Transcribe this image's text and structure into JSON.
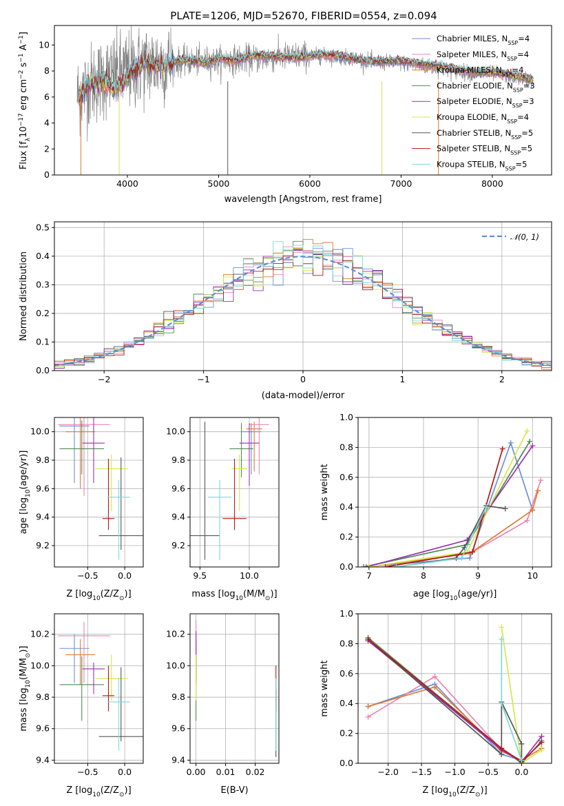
{
  "figure": {
    "title": "PLATE=1206, MJD=52670, FIBERID=0554, z=0.094"
  },
  "series_styles": [
    {
      "name": "Chabrier MILES",
      "color": "#6a8fd8",
      "nssp": "4"
    },
    {
      "name": "Salpeter MILES",
      "color": "#e884b4",
      "nssp": "4"
    },
    {
      "name": "Kroupa MILES",
      "color": "#e07a35",
      "nssp": "4"
    },
    {
      "name": "Chabrier ELODIE",
      "color": "#4f8a4f",
      "nssp": "3"
    },
    {
      "name": "Salpeter ELODIE",
      "color": "#9a2fb0",
      "nssp": "3"
    },
    {
      "name": "Kroupa ELODIE",
      "color": "#d4e84a",
      "nssp": "4"
    },
    {
      "name": "Chabrier STELIB",
      "color": "#555555",
      "nssp": "5"
    },
    {
      "name": "Salpeter STELIB",
      "color": "#b01818",
      "nssp": "5"
    },
    {
      "name": "Kroupa STELIB",
      "color": "#7fd6dc",
      "nssp": "5"
    }
  ],
  "chart_data": [
    {
      "id": "spectrum",
      "type": "line",
      "title": "PLATE=1206, MJD=52670, FIBERID=0554, z=0.094",
      "xlabel": "wavelength [Angstrom, rest frame]",
      "ylabel_parts": [
        "Flux [f",
        "λ",
        "10",
        "−17",
        " erg cm",
        "−2",
        " s",
        "−1",
        " A",
        "−1",
        "]"
      ],
      "xlim": [
        3200,
        8650
      ],
      "ylim": [
        0,
        11.5
      ],
      "xticks": [
        4000,
        5000,
        6000,
        7000,
        8000
      ],
      "yticks": [
        0,
        2,
        4,
        6,
        8,
        10
      ],
      "legend_position": "upper right",
      "legend": [
        {
          "label": "Chabrier MILES, N",
          "sub": "SSP",
          "value": "=4"
        },
        {
          "label": "Salpeter MILES, N",
          "sub": "SSP",
          "value": "=4"
        },
        {
          "label": "Kroupa MILES, N",
          "sub": "SSP",
          "value": "=4"
        },
        {
          "label": "Chabrier ELODIE, N",
          "sub": "SSP",
          "value": "=3"
        },
        {
          "label": "Salpeter ELODIE, N",
          "sub": "SSP",
          "value": "=3"
        },
        {
          "label": "Kroupa ELODIE, N",
          "sub": "SSP",
          "value": "=4"
        },
        {
          "label": "Chabrier STELIB, N",
          "sub": "SSP",
          "value": "=5"
        },
        {
          "label": "Salpeter STELIB, N",
          "sub": "SSP",
          "value": "=5"
        },
        {
          "label": "Kroupa STELIB, N",
          "sub": "SSP",
          "value": "=5"
        }
      ],
      "continuum_x": [
        3450,
        3600,
        3800,
        4000,
        4200,
        4600,
        5000,
        5500,
        6000,
        6500,
        6700,
        7000,
        7200,
        7500,
        7800,
        8000,
        8200,
        8450
      ],
      "continuum_y": [
        6.1,
        7.0,
        7.6,
        8.0,
        8.5,
        8.7,
        8.8,
        9.0,
        9.2,
        9.0,
        8.7,
        8.6,
        8.4,
        8.1,
        7.8,
        7.8,
        7.6,
        7.3
      ],
      "model_x": [
        3500,
        3520,
        3560,
        3750,
        3870,
        3970,
        4020,
        4200,
        4400,
        4600,
        4860,
        5000,
        5175,
        5400,
        5890,
        6100,
        6300,
        6563,
        6700,
        7000,
        7400,
        7800,
        8000,
        8200,
        8450
      ],
      "model_y": [
        6.0,
        6.4,
        6.9,
        7.3,
        6.6,
        7.2,
        7.9,
        8.6,
        8.4,
        8.9,
        8.6,
        9.0,
        8.8,
        9.2,
        9.0,
        9.3,
        9.2,
        8.8,
        8.7,
        8.8,
        8.4,
        7.9,
        7.9,
        7.7,
        7.3
      ],
      "drops": [
        {
          "x": 3490,
          "color_index": 2
        },
        {
          "x": 3910,
          "color_index": 5
        },
        {
          "x": 5100,
          "color_index": 6
        },
        {
          "x": 6790,
          "color_index": 5
        },
        {
          "x": 7410,
          "color_index": 2
        }
      ]
    },
    {
      "id": "residuals",
      "type": "step-histogram",
      "xlabel": "(data-model)/error",
      "ylabel": "Normed distribution",
      "xlim": [
        -2.5,
        2.5
      ],
      "ylim": [
        0,
        0.52
      ],
      "xticks": [
        -2,
        -1,
        0,
        1,
        2
      ],
      "xtick_labels": [
        "−2",
        "−1",
        "0",
        "1",
        "2"
      ],
      "yticks": [
        0.0,
        0.1,
        0.2,
        0.3,
        0.4,
        0.5
      ],
      "bin_width": 0.1,
      "legend": "𝒩(0, 1)",
      "legend_position": "upper right",
      "reference_curve": "normal(0,1)"
    },
    {
      "id": "age-vs-Z",
      "type": "errorbar",
      "xlabel_parts": [
        "Z [log",
        "10",
        "(Z/Z",
        "⊙",
        ")]"
      ],
      "ylabel_parts": [
        "age  [log",
        "10",
        "(age/yr)]"
      ],
      "xlim": [
        -0.95,
        0.25
      ],
      "ylim": [
        9.05,
        10.1
      ],
      "xticks": [
        -0.5,
        0.0
      ],
      "xtick_labels": [
        "−0.5",
        "0.0"
      ],
      "yticks": [
        9.2,
        9.4,
        9.6,
        9.8,
        10.0
      ],
      "points": [
        {
          "x": -0.68,
          "y": 10.04,
          "xerr": 0.2,
          "yerr": [
            0.4,
            0.06
          ],
          "series": 0
        },
        {
          "x": -0.55,
          "y": 10.05,
          "xerr": 0.35,
          "yerr": [
            0.5,
            0.05
          ],
          "series": 1
        },
        {
          "x": -0.6,
          "y": 10.0,
          "xerr": 0.2,
          "yerr": [
            0.4,
            0.1
          ],
          "series": 2
        },
        {
          "x": -0.58,
          "y": 9.88,
          "xerr": 0.3,
          "yerr": [
            0.18,
            0.2
          ],
          "series": 3
        },
        {
          "x": -0.42,
          "y": 9.92,
          "xerr": 0.15,
          "yerr": [
            0.28,
            0.18
          ],
          "series": 4
        },
        {
          "x": -0.18,
          "y": 9.74,
          "xerr": 0.22,
          "yerr": [
            0.3,
            0.1
          ],
          "series": 5
        },
        {
          "x": -0.05,
          "y": 9.27,
          "xerr": 0.3,
          "yerr": [
            0.1,
            0.55
          ],
          "series": 6
        },
        {
          "x": -0.22,
          "y": 9.39,
          "xerr": 0.08,
          "yerr": [
            0.08,
            0.42
          ],
          "series": 7
        },
        {
          "x": -0.08,
          "y": 9.54,
          "xerr": 0.15,
          "yerr": [
            0.44,
            0.12
          ],
          "series": 8
        }
      ]
    },
    {
      "id": "age-vs-mass",
      "type": "errorbar",
      "xlabel_parts": [
        "mass [log",
        "10",
        "(M/M",
        "⊙",
        ")]"
      ],
      "ylabel": "",
      "xlim": [
        9.4,
        10.3
      ],
      "ylim": [
        9.05,
        10.1
      ],
      "xticks": [
        9.5,
        10.0
      ],
      "xtick_labels": [
        "9.5",
        "10.0"
      ],
      "yticks": [
        9.2,
        9.4,
        9.6,
        9.8,
        10.0
      ],
      "points": [
        {
          "x": 10.02,
          "y": 10.0,
          "xerr": 0.1,
          "yerr": [
            0.3,
            0.06
          ],
          "series": 0
        },
        {
          "x": 10.1,
          "y": 10.05,
          "xerr": 0.1,
          "yerr": [
            0.35,
            0.05
          ],
          "series": 1
        },
        {
          "x": 10.05,
          "y": 10.02,
          "xerr": 0.08,
          "yerr": [
            0.3,
            0.05
          ],
          "series": 2
        },
        {
          "x": 9.92,
          "y": 9.88,
          "xerr": 0.12,
          "yerr": [
            0.2,
            0.18
          ],
          "series": 3
        },
        {
          "x": 10.0,
          "y": 9.92,
          "xerr": 0.1,
          "yerr": [
            0.3,
            0.14
          ],
          "series": 4
        },
        {
          "x": 9.9,
          "y": 9.74,
          "xerr": 0.08,
          "yerr": [
            0.3,
            0.1
          ],
          "series": 5
        },
        {
          "x": 9.55,
          "y": 9.27,
          "xerr": 0.15,
          "yerr": [
            0.17,
            0.8
          ],
          "series": 6
        },
        {
          "x": 9.85,
          "y": 9.39,
          "xerr": 0.12,
          "yerr": [
            0.08,
            0.42
          ],
          "series": 7
        },
        {
          "x": 9.7,
          "y": 9.54,
          "xerr": 0.12,
          "yerr": [
            0.44,
            0.12
          ],
          "series": 8
        }
      ]
    },
    {
      "id": "massweight-vs-age",
      "type": "line",
      "xlabel_parts": [
        "age  [log",
        "10",
        "(age/yr)]"
      ],
      "ylabel": "mass weight",
      "xlim": [
        6.8,
        10.35
      ],
      "ylim": [
        0,
        1.0
      ],
      "xticks": [
        7,
        8,
        9,
        10
      ],
      "yticks": [
        0.0,
        0.2,
        0.4,
        0.6,
        0.8,
        1.0
      ],
      "series": [
        {
          "series": 0,
          "x": [
            6.9,
            8.85,
            9.6,
            10.0
          ],
          "y": [
            0.0,
            0.06,
            0.83,
            0.38
          ]
        },
        {
          "series": 1,
          "x": [
            7.0,
            8.85,
            9.9,
            10.15
          ],
          "y": [
            0.0,
            0.09,
            0.31,
            0.58
          ]
        },
        {
          "series": 2,
          "x": [
            7.0,
            8.85,
            10.0,
            10.1
          ],
          "y": [
            0.0,
            0.09,
            0.38,
            0.51
          ]
        },
        {
          "series": 3,
          "x": [
            6.9,
            8.8,
            9.95
          ],
          "y": [
            0.0,
            0.15,
            0.84
          ]
        },
        {
          "series": 4,
          "x": [
            6.95,
            8.8,
            10.0
          ],
          "y": [
            0.0,
            0.18,
            0.81
          ]
        },
        {
          "series": 5,
          "x": [
            7.0,
            8.8,
            9.9
          ],
          "y": [
            0.0,
            0.1,
            0.91
          ]
        },
        {
          "series": 6,
          "x": [
            7.5,
            8.6,
            8.75,
            9.15,
            9.5
          ],
          "y": [
            0.0,
            0.06,
            0.13,
            0.41,
            0.39
          ]
        },
        {
          "series": 7,
          "x": [
            7.3,
            8.9,
            9.45
          ],
          "y": [
            0.0,
            0.1,
            0.79
          ]
        },
        {
          "series": 8,
          "x": [
            7.5,
            8.7,
            9.15
          ],
          "y": [
            0.0,
            0.06,
            0.4
          ]
        }
      ]
    },
    {
      "id": "mass-vs-Z",
      "type": "errorbar",
      "xlabel_parts": [
        "Z [log",
        "10",
        "(Z/Z",
        "⊙",
        ")]"
      ],
      "ylabel_parts": [
        "mass [log",
        "10",
        "(M/M",
        "⊙",
        ")]"
      ],
      "xlim": [
        -0.95,
        0.25
      ],
      "ylim": [
        9.38,
        10.33
      ],
      "xticks": [
        -0.5,
        0.0
      ],
      "xtick_labels": [
        "−0.5",
        "0.0"
      ],
      "yticks": [
        9.4,
        9.6,
        9.8,
        10.0,
        10.2
      ],
      "points": [
        {
          "x": -0.68,
          "y": 10.11,
          "xerr": 0.2,
          "yerr": [
            0.22,
            0.09
          ],
          "series": 0
        },
        {
          "x": -0.55,
          "y": 10.19,
          "xerr": 0.35,
          "yerr": [
            0.3,
            0.09
          ],
          "series": 1
        },
        {
          "x": -0.6,
          "y": 10.07,
          "xerr": 0.2,
          "yerr": [
            0.19,
            0.1
          ],
          "series": 2
        },
        {
          "x": -0.58,
          "y": 9.88,
          "xerr": 0.3,
          "yerr": [
            0.23,
            0.18
          ],
          "series": 3
        },
        {
          "x": -0.42,
          "y": 9.98,
          "xerr": 0.15,
          "yerr": [
            0.16,
            0.04
          ],
          "series": 4
        },
        {
          "x": -0.18,
          "y": 9.92,
          "xerr": 0.22,
          "yerr": [
            0.14,
            0.15
          ],
          "series": 5
        },
        {
          "x": -0.05,
          "y": 9.55,
          "xerr": 0.3,
          "yerr": [
            0.03,
            0.44
          ],
          "series": 6
        },
        {
          "x": -0.22,
          "y": 9.81,
          "xerr": 0.08,
          "yerr": [
            0.1,
            0.19
          ],
          "series": 7
        },
        {
          "x": -0.08,
          "y": 9.77,
          "xerr": 0.15,
          "yerr": [
            0.31,
            0.15
          ],
          "series": 8
        }
      ]
    },
    {
      "id": "mass-vs-EBV",
      "type": "errorbar",
      "xlabel": "E(B-V)",
      "ylabel": "",
      "xlim": [
        -0.002,
        0.028
      ],
      "ylim": [
        9.38,
        10.33
      ],
      "xticks": [
        0.0,
        0.01,
        0.02
      ],
      "xtick_labels": [
        "0.00",
        "0.01",
        "0.02"
      ],
      "yticks": [
        9.4,
        9.6,
        9.8,
        10.0,
        10.2
      ],
      "points": [
        {
          "x": 0.0,
          "y": 10.11,
          "xerr": 0.0,
          "yerr": [
            0.22,
            0.09
          ],
          "series": 0
        },
        {
          "x": 0.0,
          "y": 10.19,
          "xerr": 0.0,
          "yerr": [
            0.3,
            0.1
          ],
          "series": 1
        },
        {
          "x": 0.0,
          "y": 10.07,
          "xerr": 0.0,
          "yerr": [
            0.19,
            0.1
          ],
          "series": 2
        },
        {
          "x": 0.0,
          "y": 9.88,
          "xerr": 0.0,
          "yerr": [
            0.23,
            0.18
          ],
          "series": 3
        },
        {
          "x": 0.0,
          "y": 10.02,
          "xerr": 0.0,
          "yerr": [
            0.12,
            0.2
          ],
          "series": 4
        },
        {
          "x": 0.0,
          "y": 9.92,
          "xerr": 0.0,
          "yerr": [
            0.14,
            0.15
          ],
          "series": 5
        },
        {
          "x": 0.027,
          "y": 9.55,
          "xerr": 0.0,
          "yerr": [
            0.13,
            0.3
          ],
          "series": 6
        },
        {
          "x": 0.027,
          "y": 9.81,
          "xerr": 0.0,
          "yerr": [
            0.1,
            0.19
          ],
          "series": 7
        },
        {
          "x": 0.027,
          "y": 9.77,
          "xerr": 0.0,
          "yerr": [
            0.31,
            0.15
          ],
          "series": 8
        }
      ]
    },
    {
      "id": "massweight-vs-Z",
      "type": "line",
      "xlabel_parts": [
        "Z [log",
        "10",
        "(Z/Z",
        "⊙",
        ")]"
      ],
      "ylabel": "mass weight",
      "xlim": [
        -2.45,
        0.45
      ],
      "ylim": [
        0,
        1.0
      ],
      "xticks": [
        -2.0,
        -1.5,
        -1.0,
        -0.5,
        0.0
      ],
      "xtick_labels": [
        "−2.0",
        "−1.5",
        "−1.0",
        "−0.5",
        "0.0"
      ],
      "yticks": [
        0.0,
        0.2,
        0.4,
        0.6,
        0.8,
        1.0
      ],
      "series": [
        {
          "series": 0,
          "x": [
            -2.3,
            -1.3,
            -0.3,
            0.0
          ],
          "y": [
            0.38,
            0.53,
            0.06,
            0.02
          ]
        },
        {
          "series": 1,
          "x": [
            -2.3,
            -1.3,
            -0.3,
            0.0
          ],
          "y": [
            0.31,
            0.58,
            0.09,
            0.02
          ]
        },
        {
          "series": 2,
          "x": [
            -2.3,
            -1.3,
            -0.3,
            0.0,
            0.3
          ],
          "y": [
            0.38,
            0.51,
            0.08,
            0.02,
            0.1
          ]
        },
        {
          "series": 3,
          "x": [
            -2.3,
            -0.3,
            0.0,
            0.3
          ],
          "y": [
            0.84,
            0.1,
            0.0,
            0.15
          ]
        },
        {
          "series": 4,
          "x": [
            -2.3,
            -0.3,
            0.0,
            0.3
          ],
          "y": [
            0.82,
            0.09,
            0.01,
            0.18
          ]
        },
        {
          "series": 5,
          "x": [
            -0.3,
            0.0,
            0.3
          ],
          "y": [
            0.91,
            0.0,
            0.09
          ]
        },
        {
          "series": 6,
          "x": [
            -2.3,
            -0.3,
            -0.3,
            0.0,
            0.0
          ],
          "y": [
            0.83,
            0.06,
            0.41,
            0.13,
            0.0
          ]
        },
        {
          "series": 7,
          "x": [
            -2.3,
            -0.3,
            0.0,
            0.3
          ],
          "y": [
            0.83,
            0.1,
            0.01,
            0.14
          ]
        },
        {
          "series": 8,
          "x": [
            -0.3,
            -0.3,
            0.0
          ],
          "y": [
            0.83,
            0.4,
            0.02
          ]
        }
      ]
    }
  ]
}
